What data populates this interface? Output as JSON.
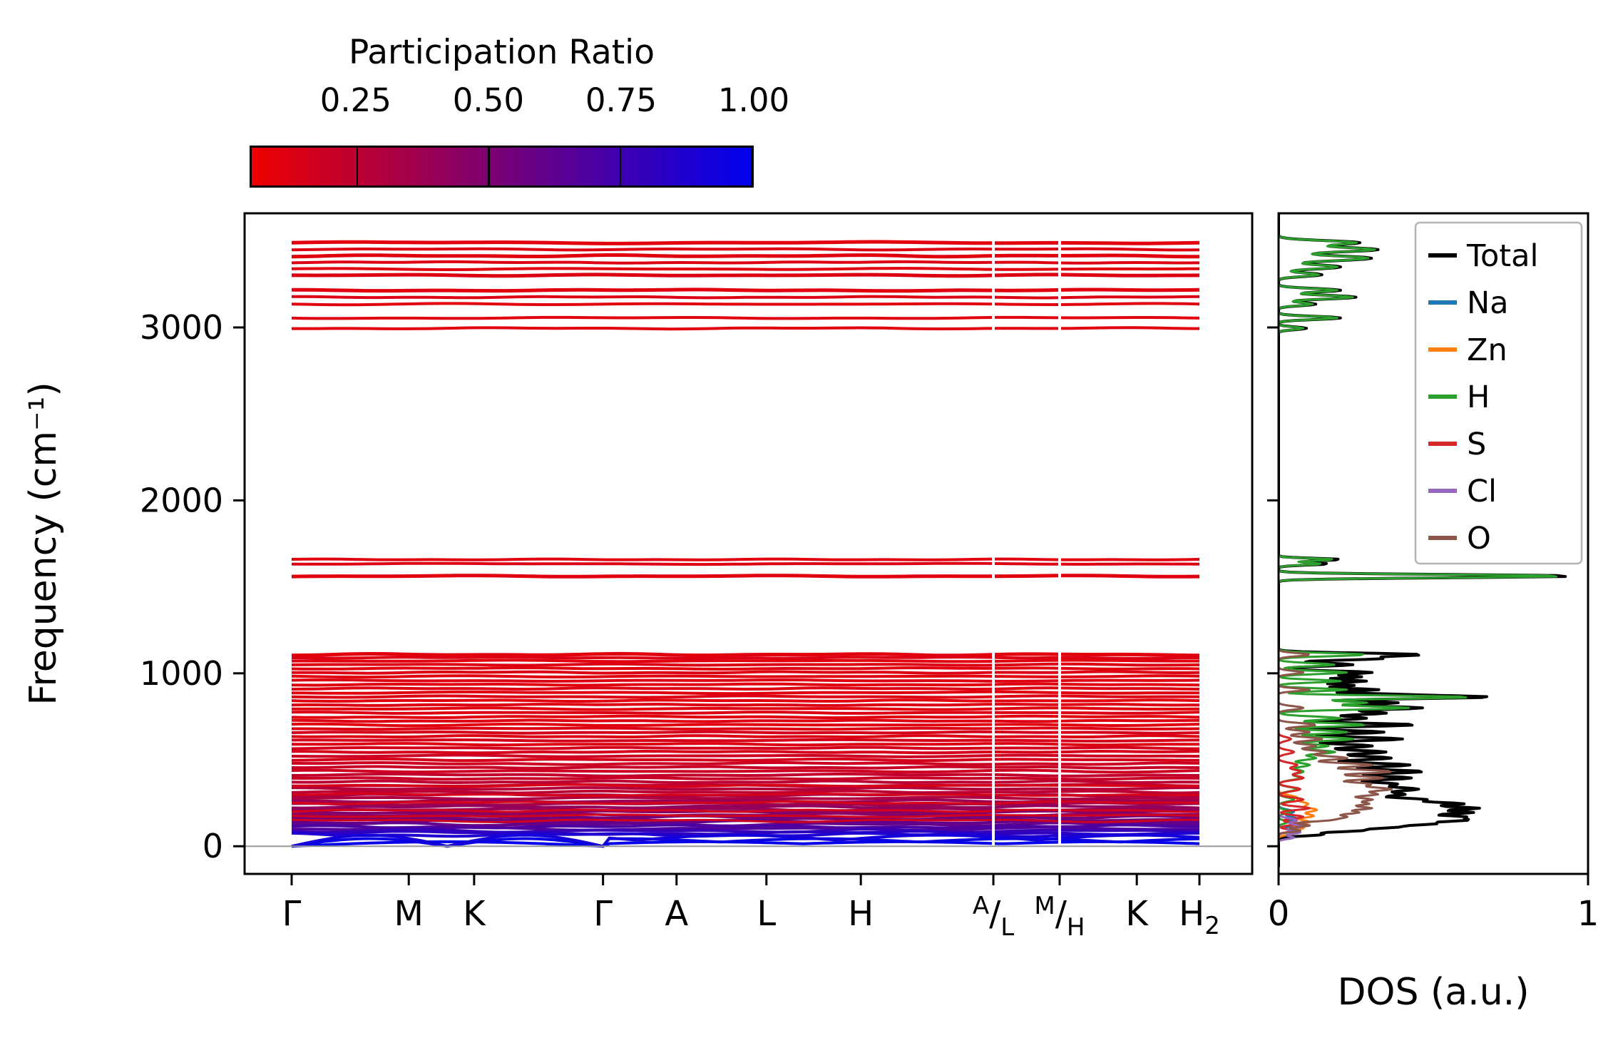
{
  "colorbar": {
    "title": "Participation Ratio",
    "ticks": [
      "0.25",
      "0.50",
      "0.75",
      "1.00"
    ],
    "tick_values": [
      0.25,
      0.5,
      0.75,
      1.0
    ],
    "vmin": 0.05,
    "vmax": 1.0,
    "color_low": "#ee0000",
    "color_high": "#0000ee"
  },
  "chart_data": [
    {
      "type": "line",
      "panel": "phonon-band-structure",
      "ylabel": "Frequency (cm⁻¹)",
      "ylim": [
        -160,
        3660
      ],
      "yticks": [
        0,
        1000,
        2000,
        3000
      ],
      "xtick_labels": [
        "Γ",
        "M",
        "K",
        "Γ",
        "A",
        "L",
        "H",
        "A/L",
        "M/H",
        "K",
        "H2"
      ],
      "xtick_positions": [
        0,
        0.129,
        0.201,
        0.343,
        0.424,
        0.523,
        0.627,
        0.773,
        0.846,
        0.931,
        1.0
      ],
      "discontinuities": [
        0.773,
        0.846
      ],
      "zero_line": 0,
      "bands_format": "[frequency_cm-1, dispersion_amplitude_cm-1, participation_ratio, line_width_px]",
      "bands": [
        [
          3490,
          5,
          0.1,
          5
        ],
        [
          3452,
          4,
          0.12,
          4
        ],
        [
          3414,
          5,
          0.1,
          5
        ],
        [
          3376,
          4,
          0.12,
          4
        ],
        [
          3338,
          4,
          0.1,
          4
        ],
        [
          3302,
          4,
          0.12,
          5
        ],
        [
          3215,
          4,
          0.1,
          5
        ],
        [
          3175,
          4,
          0.12,
          4
        ],
        [
          3135,
          4,
          0.1,
          4
        ],
        [
          3055,
          4,
          0.1,
          4
        ],
        [
          2995,
          4,
          0.1,
          4
        ],
        [
          1658,
          3,
          0.1,
          4
        ],
        [
          1633,
          3,
          0.12,
          4
        ],
        [
          1562,
          4,
          0.1,
          5
        ],
        [
          1108,
          5,
          0.1,
          5
        ],
        [
          1090,
          4,
          0.12,
          4
        ],
        [
          1072,
          4,
          0.1,
          4
        ],
        [
          1050,
          4,
          0.12,
          4
        ],
        [
          1028,
          4,
          0.1,
          4
        ],
        [
          1005,
          5,
          0.12,
          4
        ],
        [
          982,
          4,
          0.1,
          4
        ],
        [
          958,
          4,
          0.12,
          4
        ],
        [
          935,
          4,
          0.1,
          4
        ],
        [
          912,
          4,
          0.12,
          4
        ],
        [
          888,
          5,
          0.1,
          4
        ],
        [
          865,
          5,
          0.12,
          4
        ],
        [
          842,
          4,
          0.1,
          4
        ],
        [
          818,
          4,
          0.12,
          4
        ],
        [
          795,
          5,
          0.1,
          4
        ],
        [
          772,
          4,
          0.12,
          4
        ],
        [
          748,
          5,
          0.1,
          4
        ],
        [
          725,
          4,
          0.12,
          4
        ],
        [
          702,
          5,
          0.1,
          4
        ],
        [
          680,
          4,
          0.12,
          4
        ],
        [
          658,
          4,
          0.15,
          4
        ],
        [
          635,
          5,
          0.12,
          4
        ],
        [
          612,
          4,
          0.15,
          4
        ],
        [
          590,
          5,
          0.12,
          4
        ],
        [
          568,
          4,
          0.15,
          4
        ],
        [
          545,
          5,
          0.15,
          4
        ],
        [
          522,
          5,
          0.18,
          4
        ],
        [
          500,
          5,
          0.15,
          4
        ],
        [
          478,
          6,
          0.18,
          4
        ],
        [
          456,
          5,
          0.2,
          4
        ],
        [
          434,
          6,
          0.18,
          4
        ],
        [
          412,
          6,
          0.22,
          4
        ],
        [
          392,
          5,
          0.2,
          4
        ],
        [
          372,
          6,
          0.25,
          4
        ],
        [
          352,
          6,
          0.22,
          4
        ],
        [
          333,
          6,
          0.28,
          4
        ],
        [
          314,
          6,
          0.25,
          4
        ],
        [
          296,
          7,
          0.32,
          4
        ],
        [
          278,
          6,
          0.3,
          4
        ],
        [
          261,
          7,
          0.38,
          4
        ],
        [
          244,
          7,
          0.35,
          4
        ],
        [
          228,
          7,
          0.42,
          4
        ],
        [
          212,
          7,
          0.4,
          4
        ],
        [
          197,
          8,
          0.48,
          4
        ],
        [
          182,
          8,
          0.45,
          4
        ],
        [
          168,
          8,
          0.55,
          4
        ],
        [
          154,
          8,
          0.52,
          4
        ],
        [
          140,
          9,
          0.62,
          4
        ],
        [
          127,
          9,
          0.6,
          4
        ],
        [
          114,
          9,
          0.7,
          4
        ],
        [
          101,
          9,
          0.68,
          4
        ],
        [
          89,
          10,
          0.78,
          4
        ],
        [
          77,
          10,
          0.82,
          4
        ],
        [
          66,
          10,
          0.88,
          4
        ],
        [
          350,
          6,
          0.14,
          3
        ],
        [
          298,
          6,
          0.14,
          3
        ],
        [
          252,
          7,
          0.15,
          3
        ],
        [
          206,
          7,
          0.15,
          3
        ],
        [
          176,
          7,
          0.17,
          3
        ],
        [
          148,
          8,
          0.18,
          3
        ]
      ],
      "acoustic_bands_format": "[max_frequency_cm-1, participation_ratio]",
      "acoustic_bands": [
        [
          26,
          0.98
        ],
        [
          44,
          0.96
        ],
        [
          64,
          0.92
        ]
      ]
    },
    {
      "type": "line",
      "panel": "density-of-states",
      "xlabel": "DOS (a.u.)",
      "xlim": [
        0,
        1
      ],
      "xticks": [
        0,
        1
      ],
      "legend_position": "upper right",
      "peaks_format": "[frequency_cm-1, height_au, sigma_cm-1]",
      "series": [
        {
          "name": "Total",
          "color": "#000000",
          "width": 4,
          "peaks": [
            [
              3490,
              0.26,
              12
            ],
            [
              3450,
              0.32,
              13
            ],
            [
              3400,
              0.3,
              14
            ],
            [
              3350,
              0.2,
              12
            ],
            [
              3305,
              0.14,
              10
            ],
            [
              3215,
              0.2,
              10
            ],
            [
              3175,
              0.25,
              11
            ],
            [
              3135,
              0.12,
              9
            ],
            [
              3055,
              0.2,
              9
            ],
            [
              2995,
              0.09,
              8
            ],
            [
              1658,
              0.2,
              7
            ],
            [
              1633,
              0.16,
              7
            ],
            [
              1562,
              0.95,
              9
            ],
            [
              1108,
              0.45,
              9
            ],
            [
              1085,
              0.32,
              9
            ],
            [
              1050,
              0.24,
              9
            ],
            [
              1005,
              0.3,
              9
            ],
            [
              980,
              0.26,
              8
            ],
            [
              955,
              0.28,
              8
            ],
            [
              930,
              0.24,
              8
            ],
            [
              905,
              0.32,
              8
            ],
            [
              880,
              0.28,
              8
            ],
            [
              862,
              0.66,
              9
            ],
            [
              830,
              0.38,
              9
            ],
            [
              800,
              0.46,
              10
            ],
            [
              770,
              0.34,
              10
            ],
            [
              740,
              0.28,
              10
            ],
            [
              702,
              0.44,
              10
            ],
            [
              660,
              0.34,
              10
            ],
            [
              620,
              0.4,
              11
            ],
            [
              580,
              0.3,
              11
            ],
            [
              545,
              0.34,
              11
            ],
            [
              510,
              0.36,
              12
            ],
            [
              470,
              0.42,
              12
            ],
            [
              432,
              0.46,
              12
            ],
            [
              395,
              0.42,
              12
            ],
            [
              360,
              0.36,
              12
            ],
            [
              330,
              0.42,
              12
            ],
            [
              300,
              0.38,
              12
            ],
            [
              270,
              0.44,
              11
            ],
            [
              245,
              0.54,
              10
            ],
            [
              220,
              0.6,
              10
            ],
            [
              195,
              0.58,
              10
            ],
            [
              170,
              0.54,
              10
            ],
            [
              150,
              0.5,
              9
            ],
            [
              130,
              0.44,
              9
            ],
            [
              110,
              0.34,
              9
            ],
            [
              90,
              0.24,
              8
            ],
            [
              68,
              0.14,
              8
            ]
          ]
        },
        {
          "name": "Na",
          "color": "#1f77b4",
          "width": 3,
          "peaks": [
            [
              200,
              0.05,
              12
            ],
            [
              160,
              0.06,
              11
            ],
            [
              125,
              0.06,
              10
            ],
            [
              90,
              0.05,
              9
            ]
          ]
        },
        {
          "name": "Zn",
          "color": "#ff7f0e",
          "width": 3,
          "peaks": [
            [
              280,
              0.06,
              14
            ],
            [
              245,
              0.09,
              13
            ],
            [
              210,
              0.12,
              13
            ],
            [
              175,
              0.11,
              12
            ],
            [
              140,
              0.1,
              11
            ],
            [
              105,
              0.08,
              10
            ],
            [
              75,
              0.05,
              9
            ]
          ]
        },
        {
          "name": "H",
          "color": "#2ca02c",
          "width": 3,
          "peaks": [
            [
              3490,
              0.25,
              12
            ],
            [
              3450,
              0.31,
              13
            ],
            [
              3400,
              0.29,
              14
            ],
            [
              3350,
              0.19,
              12
            ],
            [
              3305,
              0.13,
              10
            ],
            [
              3215,
              0.19,
              10
            ],
            [
              3175,
              0.24,
              11
            ],
            [
              3135,
              0.11,
              9
            ],
            [
              3055,
              0.19,
              9
            ],
            [
              2995,
              0.08,
              8
            ],
            [
              1658,
              0.18,
              7
            ],
            [
              1633,
              0.14,
              7
            ],
            [
              1562,
              0.92,
              9
            ],
            [
              1108,
              0.28,
              9
            ],
            [
              1050,
              0.18,
              9
            ],
            [
              1005,
              0.22,
              9
            ],
            [
              955,
              0.2,
              8
            ],
            [
              905,
              0.22,
              8
            ],
            [
              862,
              0.62,
              9
            ],
            [
              830,
              0.28,
              9
            ],
            [
              800,
              0.42,
              10
            ],
            [
              740,
              0.2,
              10
            ],
            [
              702,
              0.28,
              10
            ],
            [
              660,
              0.22,
              10
            ],
            [
              620,
              0.24,
              11
            ],
            [
              580,
              0.16,
              11
            ],
            [
              545,
              0.18,
              11
            ],
            [
              510,
              0.12,
              12
            ],
            [
              470,
              0.1,
              12
            ],
            [
              432,
              0.08,
              12
            ],
            [
              395,
              0.07,
              12
            ],
            [
              330,
              0.06,
              12
            ],
            [
              270,
              0.05,
              11
            ],
            [
              200,
              0.04,
              10
            ],
            [
              140,
              0.03,
              9
            ]
          ]
        },
        {
          "name": "S",
          "color": "#d62728",
          "width": 3,
          "peaks": [
            [
              620,
              0.04,
              11
            ],
            [
              545,
              0.05,
              11
            ],
            [
              470,
              0.06,
              12
            ],
            [
              432,
              0.07,
              12
            ],
            [
              395,
              0.08,
              12
            ],
            [
              330,
              0.07,
              12
            ],
            [
              270,
              0.08,
              11
            ],
            [
              220,
              0.1,
              10
            ],
            [
              170,
              0.08,
              10
            ],
            [
              130,
              0.06,
              9
            ],
            [
              90,
              0.05,
              8
            ]
          ]
        },
        {
          "name": "Cl",
          "color": "#9467bd",
          "width": 3,
          "peaks": [
            [
              150,
              0.06,
              11
            ],
            [
              115,
              0.08,
              10
            ],
            [
              80,
              0.07,
              9
            ],
            [
              50,
              0.05,
              8
            ]
          ]
        },
        {
          "name": "O",
          "color": "#8c564b",
          "width": 3,
          "peaks": [
            [
              1108,
              0.1,
              9
            ],
            [
              1005,
              0.08,
              9
            ],
            [
              905,
              0.1,
              8
            ],
            [
              800,
              0.08,
              10
            ],
            [
              702,
              0.12,
              10
            ],
            [
              660,
              0.1,
              10
            ],
            [
              620,
              0.14,
              11
            ],
            [
              580,
              0.12,
              11
            ],
            [
              545,
              0.15,
              11
            ],
            [
              510,
              0.22,
              12
            ],
            [
              470,
              0.3,
              12
            ],
            [
              432,
              0.36,
              12
            ],
            [
              395,
              0.33,
              12
            ],
            [
              360,
              0.28,
              12
            ],
            [
              330,
              0.34,
              12
            ],
            [
              300,
              0.3,
              12
            ],
            [
              270,
              0.28,
              11
            ],
            [
              245,
              0.26,
              10
            ],
            [
              220,
              0.28,
              10
            ],
            [
              195,
              0.24,
              10
            ],
            [
              170,
              0.2,
              10
            ],
            [
              150,
              0.14,
              9
            ],
            [
              120,
              0.1,
              9
            ],
            [
              90,
              0.07,
              8
            ]
          ]
        }
      ]
    }
  ]
}
